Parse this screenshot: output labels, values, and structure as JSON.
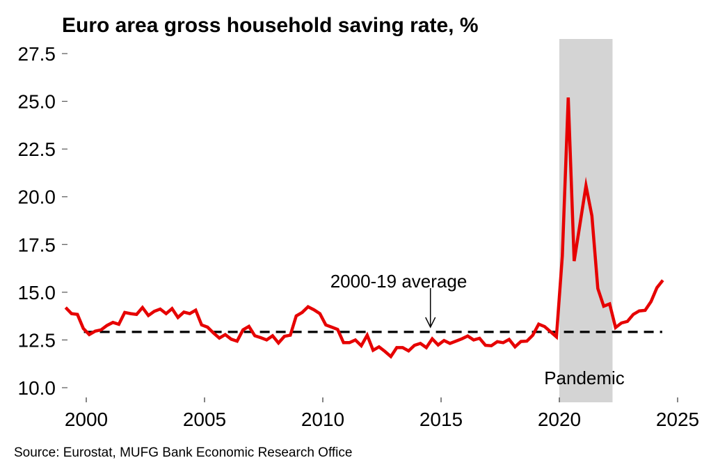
{
  "chart_data": {
    "type": "line",
    "title": "Euro area gross household saving rate, %",
    "xlabel": "",
    "ylabel": "",
    "xlim": [
      1999,
      2025.8
    ],
    "ylim": [
      10.0,
      28.2
    ],
    "x_ticks": [
      2000,
      2005,
      2010,
      2015,
      2020,
      2025
    ],
    "x_tick_labels": [
      "2000",
      "2005",
      "2010",
      "2015",
      "2020",
      "2025"
    ],
    "y_ticks": [
      10.0,
      12.5,
      15.0,
      17.5,
      20.0,
      22.5,
      25.0,
      27.5
    ],
    "y_tick_labels": [
      "10.0",
      "12.5",
      "15.0",
      "17.5",
      "20.0",
      "22.5",
      "25.0",
      "27.5"
    ],
    "grid": false,
    "series": [
      {
        "name": "Gross household saving rate",
        "color": "#e60000",
        "x_start": 1999.125,
        "x_step": 0.25,
        "frequency": "quarterly",
        "values": [
          14.2,
          13.88,
          13.84,
          13.1,
          12.78,
          12.96,
          13.03,
          13.26,
          13.42,
          13.32,
          13.94,
          13.88,
          13.84,
          14.2,
          13.78,
          14.0,
          14.12,
          13.88,
          14.14,
          13.68,
          13.96,
          13.88,
          14.06,
          13.29,
          13.17,
          12.87,
          12.6,
          12.78,
          12.54,
          12.44,
          13.03,
          13.21,
          12.72,
          12.62,
          12.5,
          12.72,
          12.34,
          12.69,
          12.75,
          13.76,
          13.94,
          14.24,
          14.08,
          13.88,
          13.29,
          13.17,
          13.05,
          12.36,
          12.36,
          12.5,
          12.2,
          12.75,
          11.96,
          12.14,
          11.9,
          11.63,
          12.1,
          12.1,
          11.93,
          12.22,
          12.32,
          12.1,
          12.56,
          12.24,
          12.47,
          12.32,
          12.44,
          12.56,
          12.71,
          12.5,
          12.59,
          12.22,
          12.2,
          12.41,
          12.36,
          12.53,
          12.14,
          12.42,
          12.44,
          12.75,
          13.33,
          13.2,
          12.93,
          12.66,
          16.9,
          25.2,
          16.63,
          18.6,
          20.58,
          19.0,
          15.2,
          14.27,
          14.39,
          13.15,
          13.39,
          13.47,
          13.84,
          14.02,
          14.05,
          14.51,
          15.24,
          15.63
        ]
      }
    ],
    "reference_line": {
      "name": "2000-19 average",
      "value": 12.92,
      "x_range": [
        1999.9,
        2024.35
      ],
      "style": "dashed",
      "color": "#000000"
    },
    "annotations": [
      {
        "text": "2000-19 average",
        "arrow_to_x": 2014.55,
        "arrow_to_y": 12.92
      },
      {
        "text": "Pandemic",
        "near_x": 2021.2
      }
    ],
    "shaded_regions": [
      {
        "label": "Pandemic",
        "x_from": 2020.0,
        "x_to": 2022.25,
        "color": "#d4d4d4"
      }
    ],
    "source": "Source: Eurostat, MUFG Bank Economic Research Office"
  }
}
